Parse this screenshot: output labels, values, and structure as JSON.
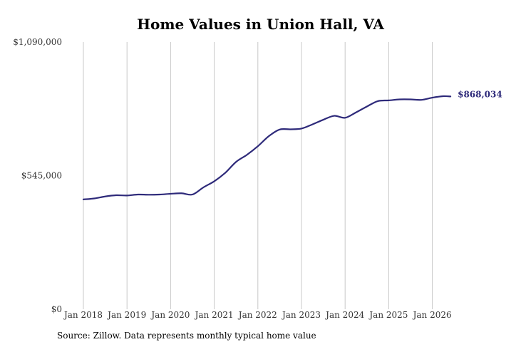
{
  "chart_data": {
    "type": "line",
    "title": "Home Values in Union Hall, VA",
    "xlabel": "",
    "ylabel": "",
    "x_tick_labels": [
      "Jan 2018",
      "Jan 2019",
      "Jan 2020",
      "Jan 2021",
      "Jan 2022",
      "Jan 2023",
      "Jan 2024",
      "Jan 2025",
      "Jan 2026"
    ],
    "y_tick_labels": [
      "$1,090,000",
      "$545,000",
      "$0"
    ],
    "y_ticks": [
      1090000,
      545000,
      0
    ],
    "ylim": [
      0,
      1090000
    ],
    "x_range": [
      "2018-01",
      "2026-06"
    ],
    "grid": "vertical lines at x ticks",
    "series": [
      {
        "color": "#2e2a7a",
        "end_label": "$868,034",
        "points": [
          [
            "2018-01",
            448000
          ],
          [
            "2018-04",
            452000
          ],
          [
            "2018-07",
            460000
          ],
          [
            "2018-10",
            465000
          ],
          [
            "2019-01",
            464000
          ],
          [
            "2019-04",
            468000
          ],
          [
            "2019-07",
            467000
          ],
          [
            "2019-10",
            468000
          ],
          [
            "2020-01",
            471000
          ],
          [
            "2020-04",
            473000
          ],
          [
            "2020-07",
            468000
          ],
          [
            "2020-10",
            497000
          ],
          [
            "2021-01",
            522000
          ],
          [
            "2021-04",
            556000
          ],
          [
            "2021-07",
            601000
          ],
          [
            "2021-10",
            630000
          ],
          [
            "2022-01",
            665000
          ],
          [
            "2022-04",
            706000
          ],
          [
            "2022-07",
            733000
          ],
          [
            "2022-10",
            734000
          ],
          [
            "2023-01",
            737000
          ],
          [
            "2023-04",
            754000
          ],
          [
            "2023-07",
            773000
          ],
          [
            "2023-10",
            789000
          ],
          [
            "2024-01",
            781000
          ],
          [
            "2024-04",
            803000
          ],
          [
            "2024-07",
            827000
          ],
          [
            "2024-10",
            849000
          ],
          [
            "2025-01",
            852000
          ],
          [
            "2025-04",
            856000
          ],
          [
            "2025-07",
            856000
          ],
          [
            "2025-10",
            854000
          ],
          [
            "2026-01",
            863000
          ],
          [
            "2026-04",
            869000
          ],
          [
            "2026-06",
            868034
          ]
        ]
      }
    ]
  },
  "source": "Source: Zillow. Data represents monthly typical home value"
}
